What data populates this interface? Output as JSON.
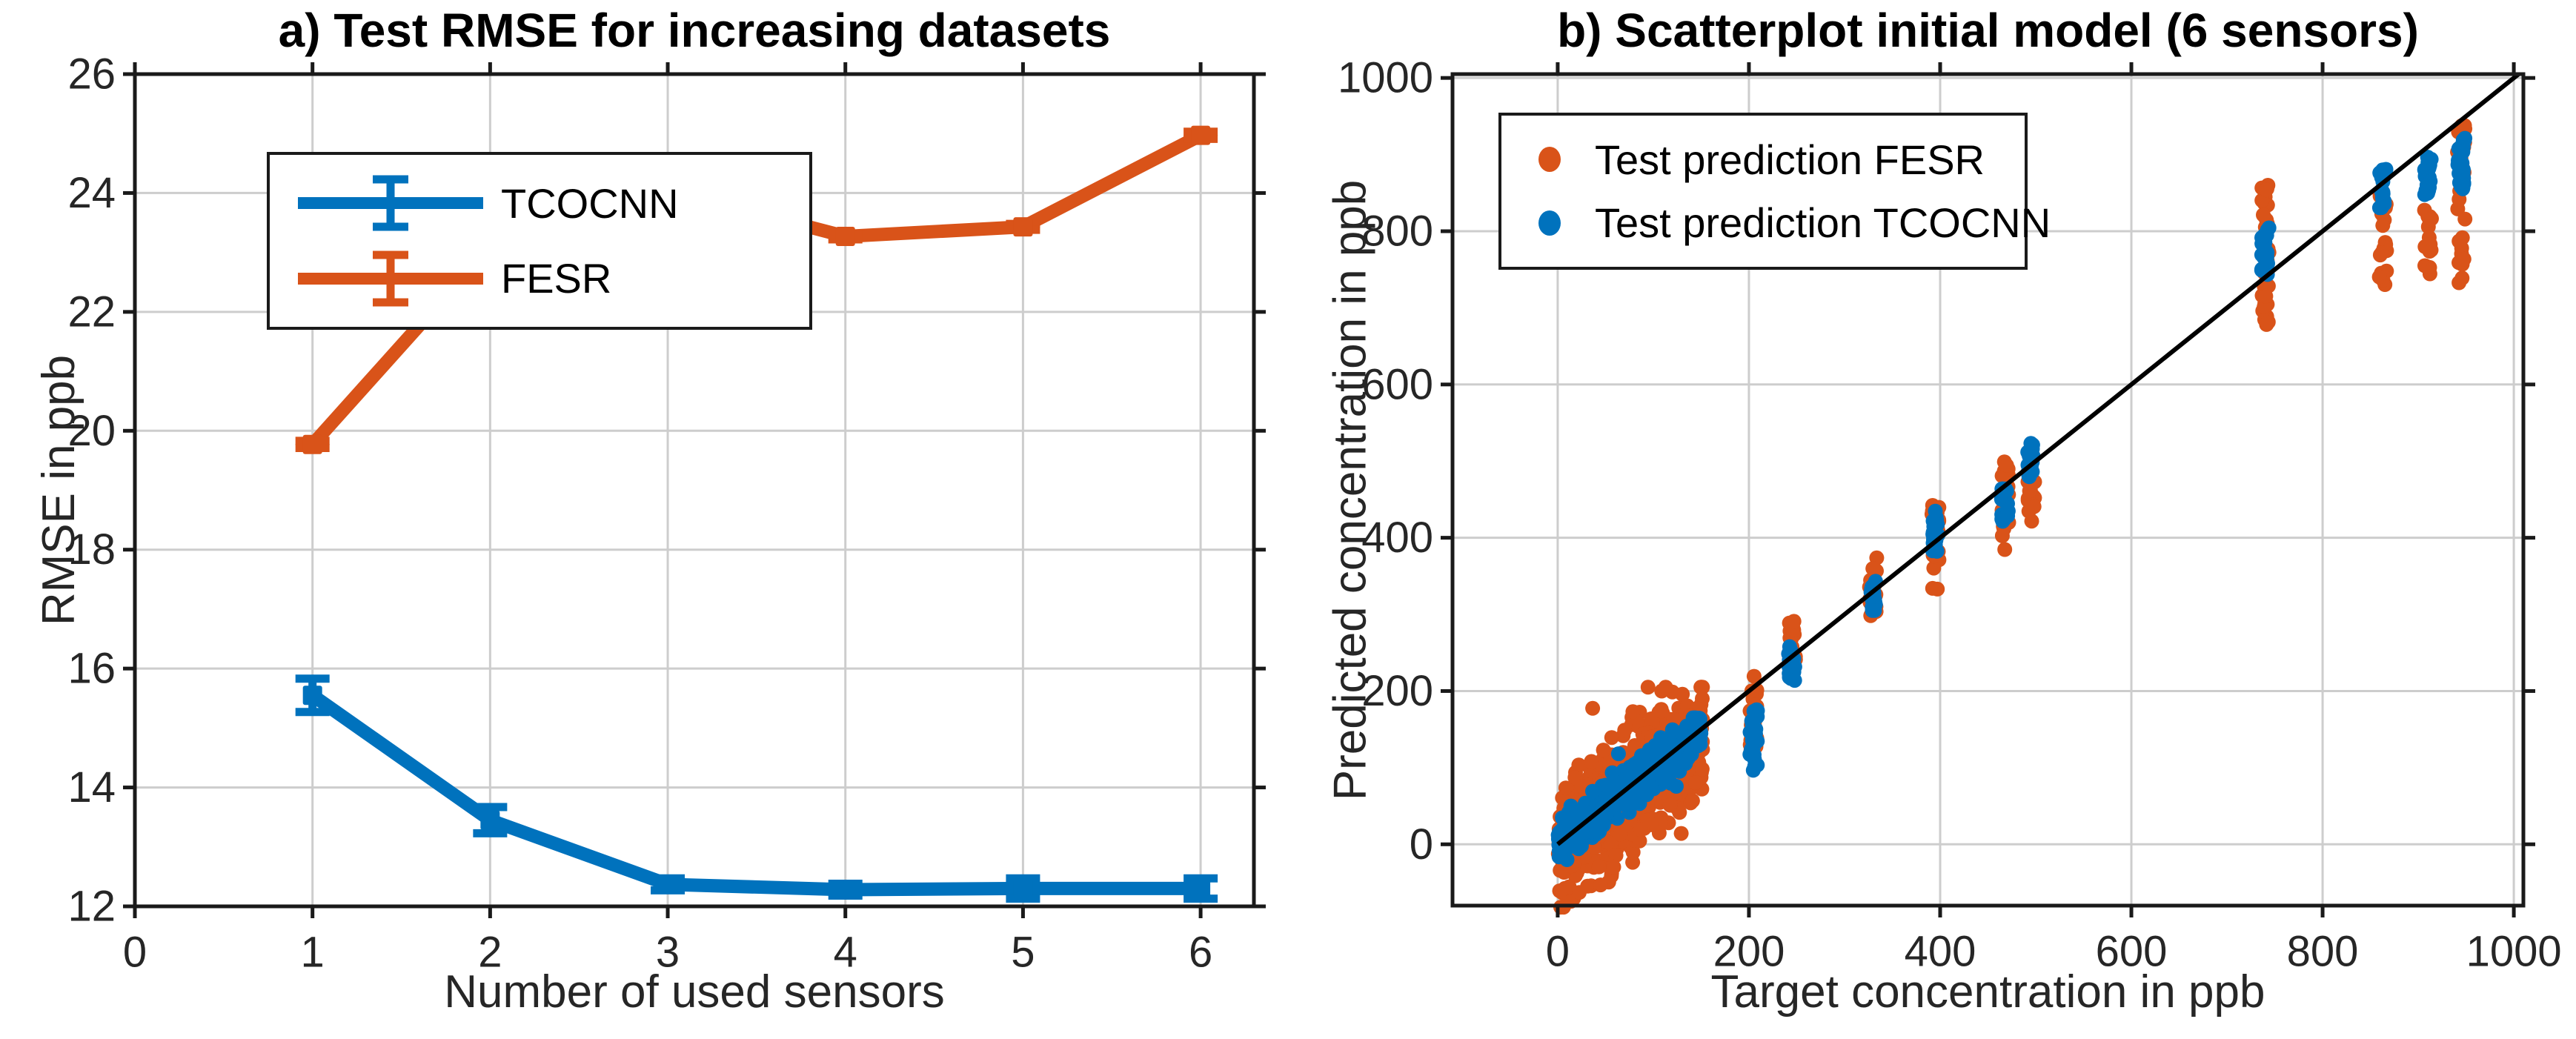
{
  "figure": {
    "background": "#ffffff",
    "axis_color": "#262626",
    "grid_color": "#cdcdcd",
    "box_color": "#1a1a1a"
  },
  "chart_data": [
    {
      "id": "a",
      "type": "line",
      "title": "a) Test RMSE for increasing datasets",
      "xlabel": "Number of used sensors",
      "ylabel": "RMSE in ppb",
      "xlim": [
        0,
        6.3
      ],
      "ylim": [
        12,
        26
      ],
      "xticks": [
        0,
        1,
        2,
        3,
        4,
        5,
        6
      ],
      "yticks": [
        12,
        14,
        16,
        18,
        20,
        22,
        24,
        26
      ],
      "grid": true,
      "legend_position": "top-left",
      "series": [
        {
          "name": "TCOCNN",
          "color": "#0072BD",
          "x": [
            1,
            2,
            3,
            4,
            5,
            6
          ],
          "y": [
            15.55,
            13.45,
            12.37,
            12.28,
            12.3,
            12.3
          ],
          "yerr": [
            0.28,
            0.22,
            0.1,
            0.1,
            0.17,
            0.17
          ]
        },
        {
          "name": "FESR",
          "color": "#D95319",
          "x": [
            1,
            2,
            3,
            4,
            5,
            6
          ],
          "y": [
            19.77,
            23.1,
            24.05,
            23.27,
            23.43,
            24.97
          ],
          "yerr": [
            0.06,
            0.05,
            0.06,
            0.05,
            0.05,
            0.06
          ]
        }
      ]
    },
    {
      "id": "b",
      "type": "scatter",
      "title": "b) Scatterplot initial model (6 sensors)",
      "xlabel": "Target concentration in ppb",
      "ylabel": "Predicted concentration in ppb",
      "xlim": [
        -110,
        1010
      ],
      "ylim": [
        -80,
        1005
      ],
      "xticks": [
        0,
        200,
        400,
        600,
        800,
        1000
      ],
      "yticks": [
        0,
        200,
        400,
        600,
        800,
        1000
      ],
      "grid": true,
      "legend_position": "top-left",
      "identity_line": {
        "from": 0,
        "to": 1005,
        "color": "#000000"
      },
      "series": [
        {
          "name": "Test prediction FESR",
          "color": "#D95319",
          "seed": 101,
          "cloud": {
            "x_min": 0,
            "x_max": 152,
            "slope": 0.95,
            "noise_sd": 42,
            "y_min": -82,
            "y_max": 205,
            "n": 650
          },
          "clusters": [
            {
              "x": 205,
              "y_min": 112,
              "y_max": 227,
              "n": 24
            },
            {
              "x": 245,
              "y_min": 228,
              "y_max": 293,
              "n": 16
            },
            {
              "x": 330,
              "y_min": 298,
              "y_max": 382,
              "n": 18
            },
            {
              "x": 395,
              "y_min": 330,
              "y_max": 445,
              "n": 22
            },
            {
              "x": 468,
              "y_min": 383,
              "y_max": 510,
              "n": 24
            },
            {
              "x": 495,
              "y_min": 420,
              "y_max": 475,
              "n": 16
            },
            {
              "x": 740,
              "y_min": 668,
              "y_max": 862,
              "n": 34
            },
            {
              "x": 863,
              "y_min": 718,
              "y_max": 852,
              "n": 18
            },
            {
              "x": 910,
              "y_min": 744,
              "y_max": 832,
              "n": 16
            },
            {
              "x": 945,
              "y_min": 722,
              "y_max": 940,
              "n": 26
            }
          ]
        },
        {
          "name": "Test prediction TCOCNN",
          "color": "#0072BD",
          "seed": 202,
          "cloud": {
            "x_min": 0,
            "x_max": 150,
            "slope": 1.0,
            "noise_sd": 13,
            "y_min": -20,
            "y_max": 165,
            "n": 650
          },
          "clusters": [
            {
              "x": 205,
              "y_min": 95,
              "y_max": 180,
              "n": 28
            },
            {
              "x": 245,
              "y_min": 213,
              "y_max": 262,
              "n": 20
            },
            {
              "x": 330,
              "y_min": 303,
              "y_max": 352,
              "n": 20
            },
            {
              "x": 395,
              "y_min": 377,
              "y_max": 435,
              "n": 24
            },
            {
              "x": 468,
              "y_min": 420,
              "y_max": 466,
              "n": 20
            },
            {
              "x": 495,
              "y_min": 478,
              "y_max": 524,
              "n": 20
            },
            {
              "x": 740,
              "y_min": 742,
              "y_max": 806,
              "n": 26
            },
            {
              "x": 863,
              "y_min": 830,
              "y_max": 882,
              "n": 22
            },
            {
              "x": 910,
              "y_min": 846,
              "y_max": 897,
              "n": 22
            },
            {
              "x": 945,
              "y_min": 852,
              "y_max": 922,
              "n": 28
            }
          ]
        }
      ]
    }
  ]
}
